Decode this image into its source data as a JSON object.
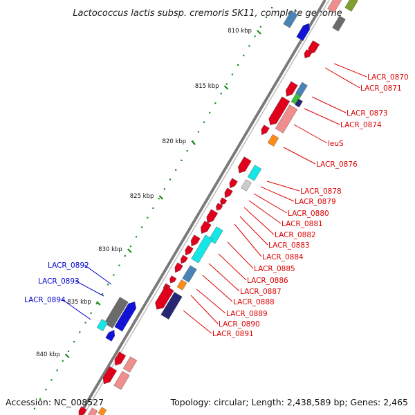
{
  "title": "Lactococcus lactis subsp. cremoris SK11, complete genome",
  "footer": {
    "accession": "Accession: NC_008527",
    "topology": "Topology: circular; Length: 2,438,589 bp; Genes: 2,465"
  },
  "ticks": [
    "810 kbp",
    "815 kbp",
    "820 kbp",
    "825 kbp",
    "830 kbp",
    "835 kbp",
    "840 kbp"
  ],
  "colors": {
    "forward_label": "#0000cc",
    "reverse_label": "#dd0000",
    "backbone": "#7a7a7a",
    "tick_marks": "#1a8a1a"
  },
  "forward_labels": [
    "LACR_0892",
    "LACR_0893",
    "LACR_0894"
  ],
  "reverse_labels": [
    "LACR_0870",
    "LACR_0871",
    "LACR_0873",
    "LACR_0874",
    "leuS",
    "LACR_0876",
    "LACR_0878",
    "LACR_0879",
    "LACR_0880",
    "LACR_0881",
    "LACR_0882",
    "LACR_0883",
    "LACR_0884",
    "LACR_0885",
    "LACR_0886",
    "LACR_0887",
    "LACR_0888",
    "LACR_0889",
    "LACR_0890",
    "LACR_0891"
  ]
}
